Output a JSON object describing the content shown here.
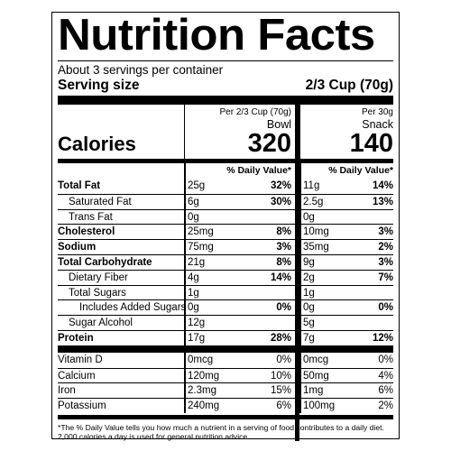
{
  "label": {
    "title": "Nutrition Facts",
    "servings_per_container": "About 3 servings per container",
    "serving_size_label": "Serving size",
    "serving_size_value": "2/3 Cup (70g)",
    "calories_label": "Calories",
    "dv_header": "% Daily Value*",
    "columns": [
      {
        "per": "Per 2/3 Cup (70g)",
        "kind": "Bowl",
        "calories": "320"
      },
      {
        "per": "Per 30g",
        "kind": "Snack",
        "calories": "140"
      }
    ],
    "nutrients": [
      {
        "name": "Total Fat",
        "bold": true,
        "indent": 0,
        "a_amt": "25g",
        "a_pct": "32%",
        "b_amt": "11g",
        "b_pct": "14%"
      },
      {
        "name": "Saturated Fat",
        "bold": false,
        "indent": 1,
        "a_amt": "6g",
        "a_pct": "30%",
        "b_amt": "2.5g",
        "b_pct": "13%"
      },
      {
        "name": "Trans Fat",
        "bold": false,
        "indent": 1,
        "a_amt": "0g",
        "a_pct": "",
        "b_amt": "0g",
        "b_pct": ""
      },
      {
        "name": "Cholesterol",
        "bold": true,
        "indent": 0,
        "a_amt": "25mg",
        "a_pct": "8%",
        "b_amt": "10mg",
        "b_pct": "3%"
      },
      {
        "name": "Sodium",
        "bold": true,
        "indent": 0,
        "a_amt": "75mg",
        "a_pct": "3%",
        "b_amt": "35mg",
        "b_pct": "2%"
      },
      {
        "name": "Total Carbohydrate",
        "bold": true,
        "indent": 0,
        "a_amt": "21g",
        "a_pct": "8%",
        "b_amt": "9g",
        "b_pct": "3%"
      },
      {
        "name": "Dietary Fiber",
        "bold": false,
        "indent": 1,
        "a_amt": "4g",
        "a_pct": "14%",
        "b_amt": "2g",
        "b_pct": "7%"
      },
      {
        "name": "Total Sugars",
        "bold": false,
        "indent": 1,
        "a_amt": "1g",
        "a_pct": "",
        "b_amt": "1g",
        "b_pct": ""
      },
      {
        "name": "Includes Added Sugars",
        "bold": false,
        "indent": 2,
        "a_amt": "0g",
        "a_pct": "0%",
        "b_amt": "0g",
        "b_pct": "0%"
      },
      {
        "name": "Sugar Alcohol",
        "bold": false,
        "indent": 1,
        "a_amt": "12g",
        "a_pct": "",
        "b_amt": "5g",
        "b_pct": ""
      },
      {
        "name": "Protein",
        "bold": true,
        "indent": 0,
        "a_amt": "17g",
        "a_pct": "28%",
        "b_amt": "7g",
        "b_pct": "12%"
      }
    ],
    "vitamins": [
      {
        "name": "Vitamin D",
        "a_amt": "0mcg",
        "a_pct": "0%",
        "b_amt": "0mcg",
        "b_pct": "0%"
      },
      {
        "name": "Calcium",
        "a_amt": "120mg",
        "a_pct": "10%",
        "b_amt": "50mg",
        "b_pct": "4%"
      },
      {
        "name": "Iron",
        "a_amt": "2.3mg",
        "a_pct": "15%",
        "b_amt": "1mg",
        "b_pct": "6%"
      },
      {
        "name": "Potassium",
        "a_amt": "240mg",
        "a_pct": "6%",
        "b_amt": "100mg",
        "b_pct": "2%"
      }
    ],
    "footnote": "*The % Daily Value tells you how much a nutrient in a serving of food contributes to a daily diet. 2,000 calories a day is used for general nutrition advice."
  }
}
